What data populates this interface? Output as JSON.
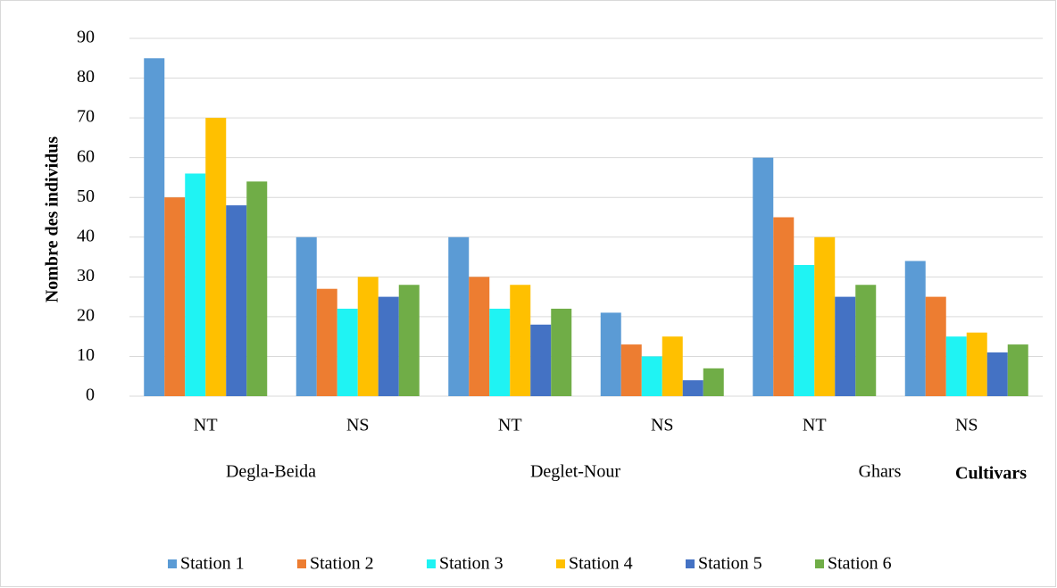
{
  "chart_data": {
    "type": "bar",
    "y_label": "Nombre des individus",
    "x_label": "Cultivars",
    "categories": [
      "NT",
      "NS",
      "NT",
      "NS",
      "NT",
      "NS"
    ],
    "groups": [
      "Degla-Beida",
      "Deglet-Nour",
      "Ghars"
    ],
    "series": [
      {
        "name": "Station 1",
        "color": "#5b9bd5",
        "values": [
          85,
          40,
          40,
          21,
          60,
          34
        ]
      },
      {
        "name": "Station 2",
        "color": "#ed7d31",
        "values": [
          50,
          27,
          30,
          13,
          45,
          25
        ]
      },
      {
        "name": "Station 3",
        "color": "#1ff3f3",
        "values": [
          56,
          22,
          22,
          10,
          33,
          15
        ]
      },
      {
        "name": "Station 4",
        "color": "#ffc000",
        "values": [
          70,
          30,
          28,
          15,
          40,
          16
        ]
      },
      {
        "name": "Station 5",
        "color": "#4472c4",
        "values": [
          48,
          25,
          18,
          4,
          25,
          11
        ]
      },
      {
        "name": "Station 6",
        "color": "#70ad47",
        "values": [
          54,
          28,
          22,
          7,
          28,
          13
        ]
      }
    ],
    "ylim": [
      0,
      90
    ],
    "yticks": [
      0,
      10,
      20,
      30,
      40,
      50,
      60,
      70,
      80,
      90
    ],
    "grid": true,
    "legend": "bottom"
  }
}
